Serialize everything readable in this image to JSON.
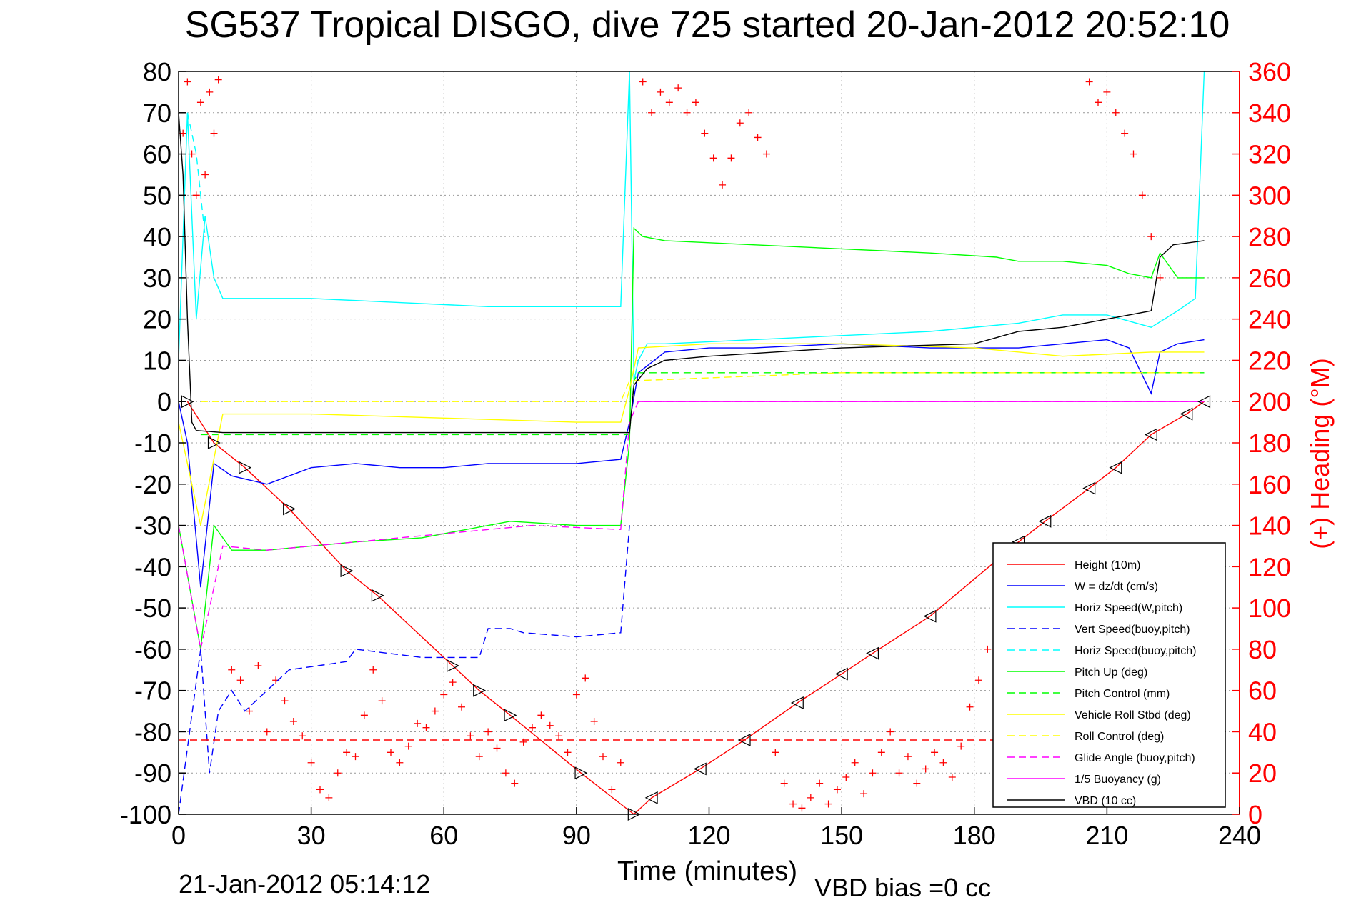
{
  "chart_data": {
    "type": "line",
    "title": "SG537 Tropical DISGO, dive 725 started 20-Jan-2012 20:52:10",
    "xlabel": "Time (minutes)",
    "ylabel": "",
    "y2label": "(+) Heading (°M)",
    "footer_left": "21-Jan-2012 05:14:12",
    "footer_right": "VBD bias =0 cc",
    "xlim": [
      0,
      240
    ],
    "ylim": [
      -100,
      80
    ],
    "y2lim": [
      0,
      360
    ],
    "grid": true,
    "legend_position": "bottom-right",
    "xticks": [
      0,
      30,
      60,
      90,
      120,
      150,
      180,
      210,
      240
    ],
    "yticks": [
      80,
      70,
      60,
      50,
      40,
      30,
      20,
      10,
      0,
      -10,
      -20,
      -30,
      -40,
      -50,
      -60,
      -70,
      -80,
      -90,
      -100
    ],
    "y2ticks": [
      360,
      340,
      320,
      300,
      280,
      260,
      240,
      220,
      200,
      180,
      160,
      140,
      120,
      100,
      80,
      60,
      40,
      20,
      0
    ],
    "series": [
      {
        "name": "Height (10m)",
        "color": "#ff0000",
        "dash": "solid",
        "marker": "triangle",
        "x": [
          2,
          8,
          15,
          25,
          38,
          45,
          62,
          68,
          75,
          91,
          103,
          107,
          118,
          128,
          140,
          150,
          157,
          170,
          190,
          196,
          206,
          212,
          220,
          228,
          232
        ],
        "y": [
          0,
          -10,
          -16,
          -26,
          -41,
          -47,
          -64,
          -70,
          -76,
          -90,
          -100,
          -96,
          -89,
          -82,
          -73,
          -66,
          -61,
          -52,
          -34,
          -29,
          -21,
          -16,
          -8,
          -3,
          0
        ]
      },
      {
        "name": "W = dz/dt (cm/s)",
        "color": "#0000ff",
        "dash": "solid",
        "x": [
          0,
          2,
          5,
          8,
          12,
          20,
          30,
          40,
          50,
          60,
          70,
          80,
          90,
          100,
          102,
          104,
          110,
          120,
          130,
          150,
          170,
          190,
          200,
          210,
          215,
          220,
          222,
          226,
          232
        ],
        "y": [
          0,
          -10,
          -45,
          -15,
          -18,
          -20,
          -16,
          -15,
          -16,
          -16,
          -15,
          -15,
          -15,
          -14,
          -5,
          7,
          12,
          13,
          13,
          14,
          13,
          13,
          14,
          15,
          13,
          2,
          12,
          14,
          15
        ]
      },
      {
        "name": "Horiz Speed(W,pitch)",
        "color": "#00ffff",
        "dash": "solid",
        "x": [
          0,
          2,
          4,
          6,
          8,
          10,
          15,
          30,
          50,
          70,
          90,
          100,
          102,
          103,
          104,
          106,
          110,
          130,
          150,
          170,
          190,
          200,
          210,
          220,
          226,
          230,
          232
        ],
        "y": [
          10,
          70,
          20,
          45,
          30,
          25,
          25,
          25,
          24,
          23,
          23,
          23,
          80,
          5,
          10,
          14,
          14,
          15,
          16,
          17,
          19,
          21,
          21,
          18,
          22,
          25,
          80
        ]
      },
      {
        "name": "Vert Speed(buoy,pitch)",
        "color": "#0000ff",
        "dash": "dash",
        "x": [
          0,
          5,
          7,
          9,
          12,
          15,
          25,
          38,
          40,
          55,
          68,
          70,
          75,
          78,
          90,
          100,
          102
        ],
        "y": [
          -100,
          -60,
          -90,
          -75,
          -70,
          -75,
          -65,
          -63,
          -60,
          -62,
          -62,
          -55,
          -55,
          -56,
          -57,
          -56,
          -30
        ]
      },
      {
        "name": "Horiz Speed(buoy,pitch)",
        "color": "#00ffff",
        "dash": "dash",
        "x": [
          2,
          4,
          6
        ],
        "y": [
          70,
          60,
          40
        ]
      },
      {
        "name": "Pitch Up (deg)",
        "color": "#00ff00",
        "dash": "solid",
        "x": [
          0,
          5,
          8,
          12,
          20,
          40,
          55,
          75,
          90,
          100,
          102,
          103,
          105,
          110,
          130,
          150,
          170,
          185,
          190,
          200,
          210,
          215,
          220,
          222,
          226,
          232
        ],
        "y": [
          -30,
          -60,
          -30,
          -36,
          -36,
          -34,
          -33,
          -29,
          -30,
          -30,
          -10,
          42,
          40,
          39,
          38,
          37,
          36,
          35,
          34,
          34,
          33,
          31,
          30,
          36,
          30,
          30
        ]
      },
      {
        "name": "Pitch Control (mm)",
        "color": "#00ff00",
        "dash": "dash",
        "x": [
          5,
          30,
          60,
          100,
          102,
          103,
          104,
          150,
          200,
          232
        ],
        "y": [
          -8,
          -8,
          -8,
          -8,
          -8,
          5,
          7,
          7,
          7,
          7
        ]
      },
      {
        "name": "Vehicle Roll Stbd (deg)",
        "color": "#ffff00",
        "dash": "solid",
        "x": [
          0,
          5,
          10,
          30,
          60,
          90,
          100,
          102,
          104,
          120,
          150,
          180,
          200,
          220,
          232
        ],
        "y": [
          -5,
          -30,
          -3,
          -3,
          -4,
          -5,
          -5,
          3,
          13,
          14,
          14,
          13,
          11,
          12,
          12
        ]
      },
      {
        "name": "Roll Control (deg)",
        "color": "#ffff00",
        "dash": "dash",
        "x": [
          5,
          30,
          60,
          100,
          102,
          150,
          200,
          232
        ],
        "y": [
          0,
          0,
          0,
          0,
          5,
          7,
          7,
          7
        ]
      },
      {
        "name": "Glide Angle (buoy,pitch)",
        "color": "#ff00ff",
        "dash": "dash",
        "x": [
          0,
          5,
          10,
          20,
          40,
          60,
          80,
          100,
          102,
          104,
          150,
          232
        ],
        "y": [
          -30,
          -60,
          -35,
          -36,
          -34,
          -32,
          -30,
          -31,
          -5,
          0,
          0,
          0
        ]
      },
      {
        "name": "1/5 Buoyancy (g)",
        "color": "#ff00ff",
        "dash": "solid",
        "x": [
          104,
          232
        ],
        "y": [
          0,
          0
        ]
      },
      {
        "name": "VBD (10 cc)",
        "color": "#000000",
        "dash": "solid",
        "x": [
          0,
          1,
          2,
          3,
          4,
          10,
          30,
          60,
          90,
          102,
          103,
          106,
          110,
          120,
          150,
          180,
          190,
          200,
          210,
          215,
          220,
          222,
          225,
          232
        ],
        "y": [
          70,
          55,
          20,
          -5,
          -7,
          -7.5,
          -7.5,
          -7.5,
          -7.5,
          -7.5,
          4,
          8,
          10,
          11,
          13,
          14,
          17,
          18,
          20,
          21,
          22,
          35,
          38,
          39
        ]
      },
      {
        "name": "",
        "color": "#ff0000",
        "dash": "dash",
        "x": [
          0,
          232
        ],
        "y": [
          -82,
          -82
        ]
      }
    ],
    "heading_points": [
      [
        1,
        330
      ],
      [
        2,
        355
      ],
      [
        3,
        320
      ],
      [
        4,
        300
      ],
      [
        5,
        345
      ],
      [
        6,
        310
      ],
      [
        7,
        350
      ],
      [
        8,
        330
      ],
      [
        9,
        356
      ],
      [
        12,
        70
      ],
      [
        14,
        65
      ],
      [
        16,
        50
      ],
      [
        18,
        72
      ],
      [
        20,
        40
      ],
      [
        22,
        65
      ],
      [
        24,
        55
      ],
      [
        26,
        45
      ],
      [
        28,
        38
      ],
      [
        30,
        25
      ],
      [
        32,
        12
      ],
      [
        34,
        8
      ],
      [
        36,
        20
      ],
      [
        38,
        30
      ],
      [
        40,
        28
      ],
      [
        42,
        48
      ],
      [
        44,
        70
      ],
      [
        46,
        55
      ],
      [
        48,
        30
      ],
      [
        50,
        25
      ],
      [
        52,
        33
      ],
      [
        54,
        44
      ],
      [
        56,
        42
      ],
      [
        58,
        50
      ],
      [
        60,
        58
      ],
      [
        62,
        64
      ],
      [
        64,
        52
      ],
      [
        66,
        38
      ],
      [
        68,
        28
      ],
      [
        70,
        40
      ],
      [
        72,
        32
      ],
      [
        74,
        20
      ],
      [
        76,
        15
      ],
      [
        78,
        35
      ],
      [
        80,
        42
      ],
      [
        82,
        48
      ],
      [
        84,
        43
      ],
      [
        86,
        38
      ],
      [
        88,
        30
      ],
      [
        90,
        58
      ],
      [
        92,
        66
      ],
      [
        94,
        45
      ],
      [
        96,
        28
      ],
      [
        98,
        12
      ],
      [
        100,
        25
      ],
      [
        105,
        355
      ],
      [
        107,
        340
      ],
      [
        109,
        350
      ],
      [
        111,
        345
      ],
      [
        113,
        352
      ],
      [
        115,
        340
      ],
      [
        117,
        345
      ],
      [
        119,
        330
      ],
      [
        121,
        318
      ],
      [
        123,
        305
      ],
      [
        125,
        318
      ],
      [
        127,
        335
      ],
      [
        129,
        340
      ],
      [
        131,
        328
      ],
      [
        133,
        320
      ],
      [
        135,
        30
      ],
      [
        137,
        15
      ],
      [
        139,
        5
      ],
      [
        141,
        3
      ],
      [
        143,
        8
      ],
      [
        145,
        15
      ],
      [
        147,
        5
      ],
      [
        149,
        12
      ],
      [
        151,
        18
      ],
      [
        153,
        25
      ],
      [
        155,
        10
      ],
      [
        157,
        20
      ],
      [
        159,
        30
      ],
      [
        161,
        40
      ],
      [
        163,
        20
      ],
      [
        165,
        28
      ],
      [
        167,
        15
      ],
      [
        169,
        22
      ],
      [
        171,
        30
      ],
      [
        173,
        25
      ],
      [
        175,
        18
      ],
      [
        177,
        33
      ],
      [
        179,
        52
      ],
      [
        181,
        65
      ],
      [
        183,
        80
      ],
      [
        185,
        45
      ],
      [
        187,
        30
      ],
      [
        189,
        20
      ],
      [
        206,
        355
      ],
      [
        208,
        345
      ],
      [
        210,
        350
      ],
      [
        212,
        340
      ],
      [
        214,
        330
      ],
      [
        216,
        320
      ],
      [
        218,
        300
      ],
      [
        220,
        280
      ],
      [
        222,
        260
      ]
    ]
  }
}
